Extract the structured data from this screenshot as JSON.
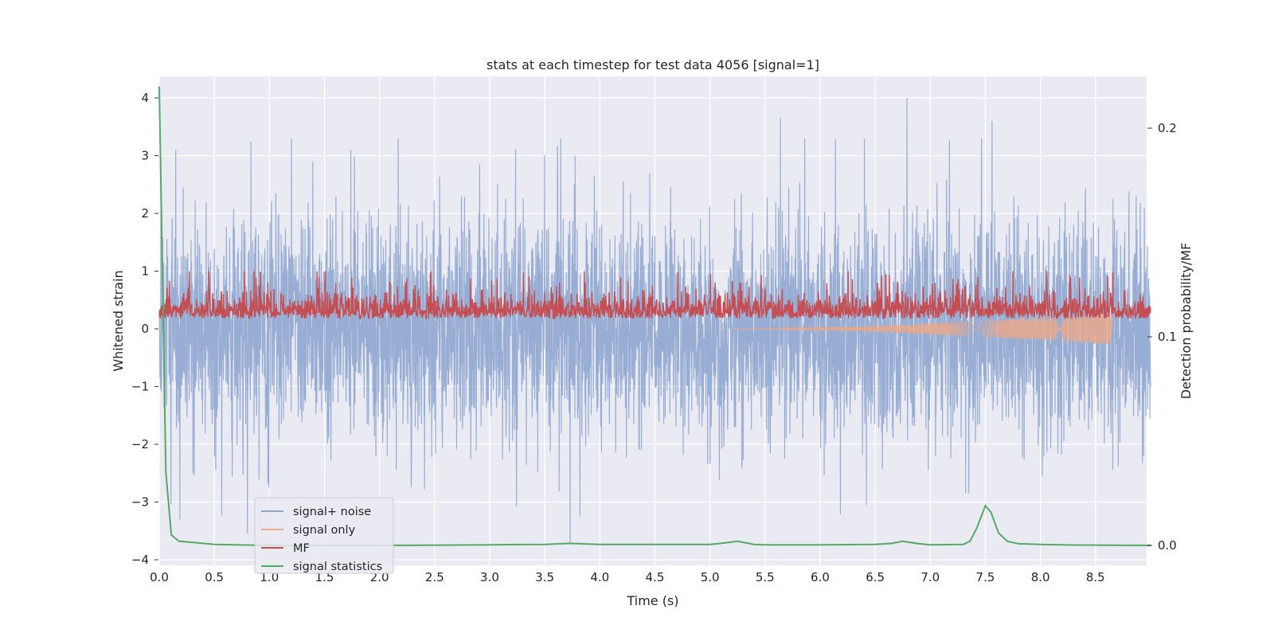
{
  "chart_data": {
    "type": "line",
    "title": "stats at each timestep for test data 4056 [signal=1]",
    "xlabel": "Time (s)",
    "ylabel": "Whitened strain",
    "y2label": "Detection probability/MF",
    "xlim": [
      0,
      9.0
    ],
    "ylim": [
      -4.25,
      4.4
    ],
    "y2lim": [
      -0.01,
      0.225
    ],
    "x_ticks": [
      "0.0",
      "0.5",
      "1.0",
      "1.5",
      "2.0",
      "2.5",
      "3.0",
      "3.5",
      "4.0",
      "4.5",
      "5.0",
      "5.5",
      "6.0",
      "6.5",
      "7.0",
      "7.5",
      "8.0",
      "8.5"
    ],
    "y_ticks": [
      "4",
      "3",
      "2",
      "1",
      "0",
      "−1",
      "−2",
      "−3",
      "−4"
    ],
    "y2_ticks": [
      "0.2",
      "0.1",
      "0.0"
    ],
    "grid": true,
    "legend_position": "lower-left",
    "series": [
      {
        "name": "signal+ noise",
        "color": "#8fa6cf",
        "axis": "left",
        "kind": "noise",
        "sample_rate_hz": 460,
        "approx_amplitude_range": [
          -3.7,
          4.0
        ],
        "peaks": [
          {
            "x": 0.15,
            "y": 3.1
          },
          {
            "x": 0.8,
            "y": -3.55
          },
          {
            "x": 1.74,
            "y": 3.1
          },
          {
            "x": 3.73,
            "y": -3.7
          },
          {
            "x": 3.82,
            "y": -3.25
          },
          {
            "x": 5.64,
            "y": 3.65
          },
          {
            "x": 6.42,
            "y": -3.05
          },
          {
            "x": 6.79,
            "y": 4.0
          },
          {
            "x": 7.56,
            "y": 3.6
          },
          {
            "x": 7.35,
            "y": -2.85
          }
        ]
      },
      {
        "name": "signal only",
        "color": "#e8a88c",
        "axis": "left",
        "kind": "chirp",
        "start": 5.2,
        "end": 8.65,
        "max_amplitude": 0.28
      },
      {
        "name": "MF",
        "color": "#c44e52",
        "axis": "left",
        "kind": "band",
        "approx_range": [
          0.0,
          1.0
        ],
        "mean": 0.3
      },
      {
        "name": "signal statistics",
        "color": "#55a868",
        "axis": "right",
        "x": [
          0.0,
          0.06,
          0.11,
          0.18,
          0.3,
          0.5,
          1.0,
          2.0,
          3.0,
          3.5,
          3.72,
          4.0,
          5.0,
          5.1,
          5.25,
          5.4,
          5.5,
          6.0,
          6.5,
          6.65,
          6.75,
          6.9,
          7.0,
          7.3,
          7.36,
          7.42,
          7.5,
          7.55,
          7.62,
          7.7,
          7.8,
          8.0,
          8.3,
          9.0
        ],
        "values": [
          0.22,
          0.035,
          0.005,
          0.002,
          0.0015,
          0.0005,
          0.0,
          0.0,
          0.0003,
          0.0005,
          0.001,
          0.0005,
          0.0005,
          0.001,
          0.002,
          0.0005,
          0.0003,
          0.0003,
          0.0005,
          0.001,
          0.002,
          0.0008,
          0.0003,
          0.0005,
          0.002,
          0.008,
          0.019,
          0.016,
          0.006,
          0.002,
          0.0008,
          0.0005,
          0.0002,
          0.0
        ]
      }
    ]
  }
}
